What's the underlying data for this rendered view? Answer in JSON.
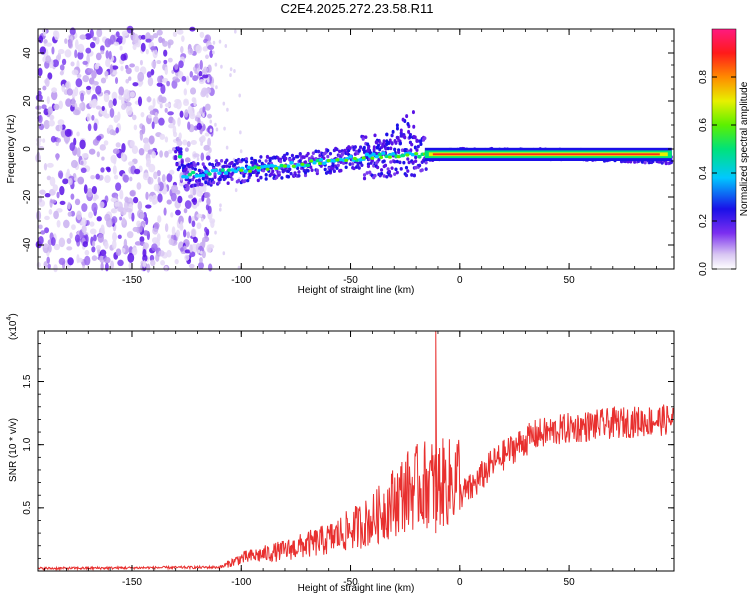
{
  "title": "C2E4.2025.272.23.58.R11",
  "chart_data": [
    {
      "type": "heatmap",
      "xlabel": "Height of straight line (km)",
      "ylabel": "Frequency (Hz)",
      "xlim": [
        -193,
        98
      ],
      "ylim": [
        -50,
        50
      ],
      "xticks": [
        -150,
        -100,
        -50,
        0,
        50
      ],
      "yticks": [
        -40,
        -20,
        0,
        20,
        40
      ],
      "colorbar": {
        "label": "Normalized spectral amplitude",
        "ticks": [
          "0.0",
          "0.2",
          "0.4",
          "0.6",
          "0.8"
        ],
        "range": [
          0,
          1
        ]
      },
      "trace": {
        "description_points": [
          {
            "x": -127,
            "y": -11
          },
          {
            "x": -100,
            "y": -9
          },
          {
            "x": -70,
            "y": -6
          },
          {
            "x": -40,
            "y": -3
          },
          {
            "x": -22,
            "y": -2
          },
          {
            "x": -15,
            "y": -3
          },
          {
            "x": 0,
            "y": -2
          },
          {
            "x": 30,
            "y": -2
          },
          {
            "x": 60,
            "y": -2.5
          },
          {
            "x": 98,
            "y": -4
          }
        ]
      }
    },
    {
      "type": "line",
      "xlabel": "Height of straight line (km)",
      "ylabel": "SNR (10 * v/v)",
      "multiplier": "(x10",
      "multiplier_exp": "4",
      "multiplier_close": ")",
      "xlim": [
        -193,
        98
      ],
      "ylim": [
        0,
        1.9
      ],
      "xticks": [
        -150,
        -100,
        -50,
        0,
        50
      ],
      "yticks": [
        "0.5",
        "1.0",
        "1.5"
      ],
      "series": [
        {
          "name": "SNR",
          "color": "#e8302f",
          "envelope": [
            {
              "x": -193,
              "y": 0.01
            },
            {
              "x": -110,
              "y": 0.02
            },
            {
              "x": -100,
              "y": 0.08
            },
            {
              "x": -80,
              "y": 0.13
            },
            {
              "x": -60,
              "y": 0.2
            },
            {
              "x": -40,
              "y": 0.32
            },
            {
              "x": -25,
              "y": 0.5
            },
            {
              "x": -15,
              "y": 0.55
            },
            {
              "x": -5,
              "y": 0.55
            },
            {
              "x": 5,
              "y": 0.65
            },
            {
              "x": 15,
              "y": 0.85
            },
            {
              "x": 25,
              "y": 0.98
            },
            {
              "x": 35,
              "y": 1.08
            },
            {
              "x": 50,
              "y": 1.13
            },
            {
              "x": 70,
              "y": 1.17
            },
            {
              "x": 98,
              "y": 1.2
            }
          ],
          "spike": {
            "x": -11,
            "y": 1.9
          }
        }
      ]
    }
  ]
}
